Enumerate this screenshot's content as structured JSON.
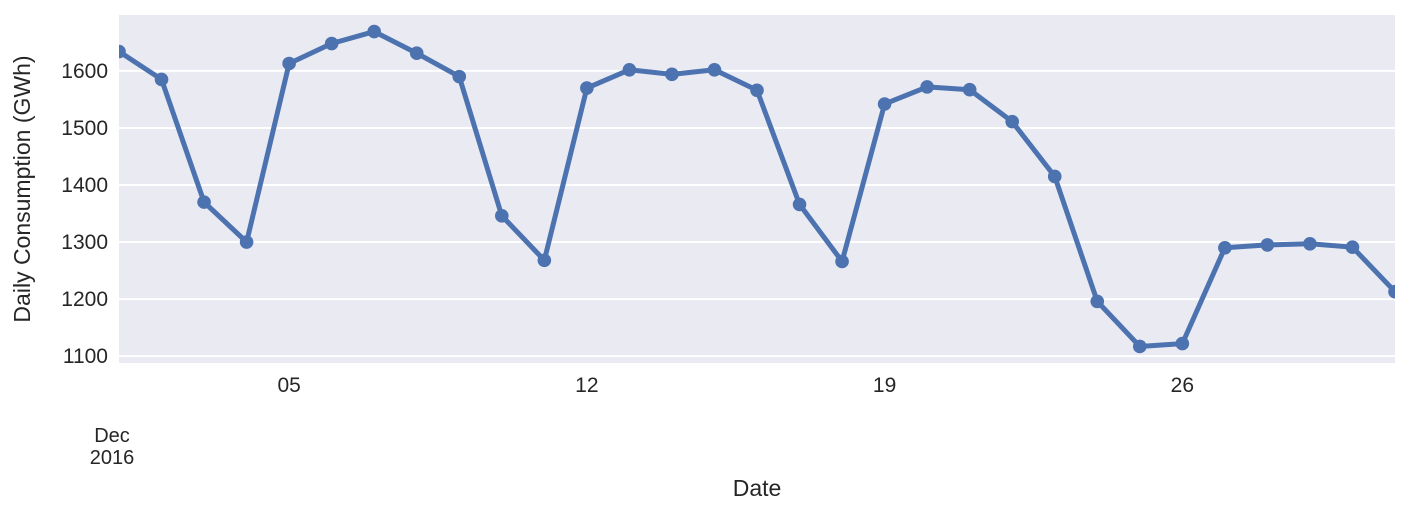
{
  "figure": {
    "background": "#ffffff"
  },
  "chart_data": {
    "type": "line",
    "title": "",
    "xlabel": "Date",
    "ylabel": "Daily Consumption (GWh)",
    "month_label": [
      "Dec",
      "2016"
    ],
    "x_unit": "day of month, December 2016",
    "x": [
      1,
      2,
      3,
      4,
      5,
      6,
      7,
      8,
      9,
      10,
      11,
      12,
      13,
      14,
      15,
      16,
      17,
      18,
      19,
      20,
      21,
      22,
      23,
      24,
      25,
      26,
      27,
      28,
      29,
      30,
      31
    ],
    "series": [
      {
        "name": "Daily Consumption",
        "values": [
          1634,
          1585,
          1370,
          1300,
          1613,
          1648,
          1669,
          1631,
          1590,
          1346,
          1268,
          1570,
          1602,
          1594,
          1602,
          1566,
          1366,
          1266,
          1542,
          1572,
          1567,
          1511,
          1415,
          1196,
          1117,
          1122,
          1290,
          1295,
          1297,
          1291,
          1213
        ],
        "color": "#4C72B0",
        "marker": "circle"
      }
    ],
    "xticks": {
      "positions": [
        5,
        12,
        19,
        26
      ],
      "labels": [
        "05",
        "12",
        "19",
        "26"
      ]
    },
    "yticks": {
      "values": [
        1100,
        1200,
        1300,
        1400,
        1500,
        1600
      ],
      "labels": [
        "1100",
        "1200",
        "1300",
        "1400",
        "1500",
        "1600"
      ]
    },
    "xlim": [
      1,
      31
    ],
    "ylim": [
      1088,
      1698
    ],
    "grid": "horizontal",
    "grid_color": "#FFFFFF",
    "plot_background": "#EAEAF2",
    "line_color": "#4C72B0",
    "text_color": "#262626",
    "legend": "none"
  }
}
